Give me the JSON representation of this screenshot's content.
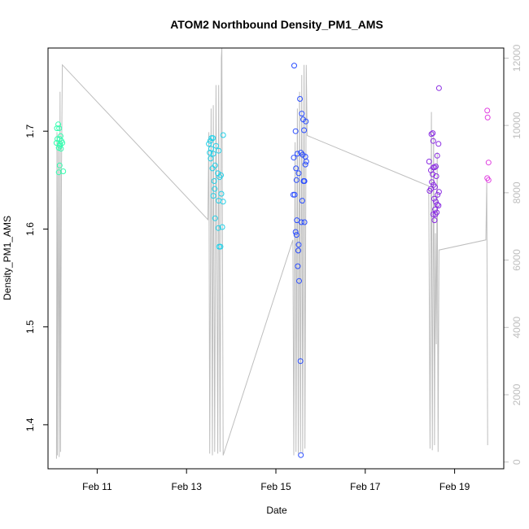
{
  "chart_data": {
    "type": "scatter",
    "title": "ATOM2 Northbound Density_PM1_AMS",
    "xlabel": "Date",
    "ylabel": "Density_PM1_AMS",
    "x_unit": "day of February",
    "xlim": [
      9.9,
      20.1
    ],
    "ylim": [
      1.355,
      1.785
    ],
    "x_ticks": [
      {
        "value": 11,
        "label": "Feb 11"
      },
      {
        "value": 13,
        "label": "Feb 13"
      },
      {
        "value": 15,
        "label": "Feb 15"
      },
      {
        "value": 17,
        "label": "Feb 17"
      },
      {
        "value": 19,
        "label": "Feb 19"
      }
    ],
    "y_ticks": [
      {
        "value": 1.4,
        "label": "1.4"
      },
      {
        "value": 1.5,
        "label": "1.5"
      },
      {
        "value": 1.6,
        "label": "1.6"
      },
      {
        "value": 1.7,
        "label": "1.7"
      }
    ],
    "y2_lim": [
      -200,
      12300
    ],
    "y2_ticks": [
      {
        "value": 0,
        "label": "0"
      },
      {
        "value": 2000,
        "label": "2000"
      },
      {
        "value": 4000,
        "label": "4000"
      },
      {
        "value": 6000,
        "label": "6000"
      },
      {
        "value": 8000,
        "label": "8000"
      },
      {
        "value": 10000,
        "label": "10000"
      },
      {
        "value": 12000,
        "label": "12000"
      }
    ],
    "grid": false,
    "legend": "none",
    "series": [
      {
        "marker": "open-circle",
        "color_note": "points colored by time, green to cyan to blue to purple to magenta",
        "points": [
          {
            "x": 10.1,
            "y": 1.703,
            "color": "#33ffb0"
          },
          {
            "x": 10.13,
            "y": 1.707,
            "color": "#33ffb0"
          },
          {
            "x": 10.15,
            "y": 1.703,
            "color": "#33ffb0"
          },
          {
            "x": 10.11,
            "y": 1.692,
            "color": "#33ffb0"
          },
          {
            "x": 10.16,
            "y": 1.692,
            "color": "#33ffb0"
          },
          {
            "x": 10.18,
            "y": 1.695,
            "color": "#33ffb0"
          },
          {
            "x": 10.09,
            "y": 1.688,
            "color": "#33ffb0"
          },
          {
            "x": 10.2,
            "y": 1.69,
            "color": "#33ffb0"
          },
          {
            "x": 10.17,
            "y": 1.687,
            "color": "#33ffb0"
          },
          {
            "x": 10.22,
            "y": 1.688,
            "color": "#33ffb0"
          },
          {
            "x": 10.14,
            "y": 1.683,
            "color": "#33ffb0"
          },
          {
            "x": 10.19,
            "y": 1.682,
            "color": "#33ffb0"
          },
          {
            "x": 10.16,
            "y": 1.665,
            "color": "#33ffb0"
          },
          {
            "x": 10.14,
            "y": 1.658,
            "color": "#33ffb0"
          },
          {
            "x": 10.24,
            "y": 1.659,
            "color": "#33ffb0"
          },
          {
            "x": 10.17,
            "y": 1.685,
            "color": "#33ffb0"
          },
          {
            "x": 13.5,
            "y": 1.687,
            "color": "#22d0e8"
          },
          {
            "x": 13.53,
            "y": 1.69,
            "color": "#22d0e8"
          },
          {
            "x": 13.56,
            "y": 1.693,
            "color": "#22d0e8"
          },
          {
            "x": 13.59,
            "y": 1.693,
            "color": "#22d0e8"
          },
          {
            "x": 13.55,
            "y": 1.682,
            "color": "#22d0e8"
          },
          {
            "x": 13.52,
            "y": 1.678,
            "color": "#22d0e8"
          },
          {
            "x": 13.6,
            "y": 1.677,
            "color": "#22d0e8"
          },
          {
            "x": 13.66,
            "y": 1.685,
            "color": "#22d0e8"
          },
          {
            "x": 13.72,
            "y": 1.68,
            "color": "#22d0e8"
          },
          {
            "x": 13.82,
            "y": 1.696,
            "color": "#22d0e8"
          },
          {
            "x": 13.54,
            "y": 1.672,
            "color": "#22d0e8"
          },
          {
            "x": 13.58,
            "y": 1.662,
            "color": "#22d0e8"
          },
          {
            "x": 13.64,
            "y": 1.665,
            "color": "#22d0e8"
          },
          {
            "x": 13.7,
            "y": 1.657,
            "color": "#22d0e8"
          },
          {
            "x": 13.74,
            "y": 1.653,
            "color": "#22d0e8"
          },
          {
            "x": 13.77,
            "y": 1.655,
            "color": "#22d0e8"
          },
          {
            "x": 13.62,
            "y": 1.649,
            "color": "#22d0e8"
          },
          {
            "x": 13.63,
            "y": 1.641,
            "color": "#22d0e8"
          },
          {
            "x": 13.6,
            "y": 1.634,
            "color": "#22d0e8"
          },
          {
            "x": 13.78,
            "y": 1.636,
            "color": "#22d0e8"
          },
          {
            "x": 13.72,
            "y": 1.629,
            "color": "#22d0e8"
          },
          {
            "x": 13.82,
            "y": 1.628,
            "color": "#22d0e8"
          },
          {
            "x": 13.64,
            "y": 1.611,
            "color": "#22d0e8"
          },
          {
            "x": 13.71,
            "y": 1.601,
            "color": "#22d0e8"
          },
          {
            "x": 13.8,
            "y": 1.602,
            "color": "#22d0e8"
          },
          {
            "x": 13.73,
            "y": 1.582,
            "color": "#22d0e8"
          },
          {
            "x": 13.76,
            "y": 1.582,
            "color": "#22d0e8"
          },
          {
            "x": 15.41,
            "y": 1.767,
            "color": "#2a4dff"
          },
          {
            "x": 15.54,
            "y": 1.733,
            "color": "#2a4dff"
          },
          {
            "x": 15.58,
            "y": 1.718,
            "color": "#2a4dff"
          },
          {
            "x": 15.61,
            "y": 1.712,
            "color": "#2a4dff"
          },
          {
            "x": 15.67,
            "y": 1.71,
            "color": "#2a4dff"
          },
          {
            "x": 15.44,
            "y": 1.7,
            "color": "#2a4dff"
          },
          {
            "x": 15.63,
            "y": 1.701,
            "color": "#2a4dff"
          },
          {
            "x": 15.48,
            "y": 1.677,
            "color": "#2a4dff"
          },
          {
            "x": 15.56,
            "y": 1.678,
            "color": "#2a4dff"
          },
          {
            "x": 15.6,
            "y": 1.676,
            "color": "#2a4dff"
          },
          {
            "x": 15.66,
            "y": 1.674,
            "color": "#2a4dff"
          },
          {
            "x": 15.4,
            "y": 1.673,
            "color": "#2a4dff"
          },
          {
            "x": 15.68,
            "y": 1.669,
            "color": "#2a4dff"
          },
          {
            "x": 15.66,
            "y": 1.666,
            "color": "#2a4dff"
          },
          {
            "x": 15.45,
            "y": 1.662,
            "color": "#2a4dff"
          },
          {
            "x": 15.51,
            "y": 1.657,
            "color": "#2a4dff"
          },
          {
            "x": 15.46,
            "y": 1.65,
            "color": "#2a4dff"
          },
          {
            "x": 15.62,
            "y": 1.649,
            "color": "#2a4dff"
          },
          {
            "x": 15.64,
            "y": 1.649,
            "color": "#2a4dff"
          },
          {
            "x": 15.63,
            "y": 1.649,
            "color": "#2a4dff"
          },
          {
            "x": 15.39,
            "y": 1.635,
            "color": "#2a4dff"
          },
          {
            "x": 15.42,
            "y": 1.635,
            "color": "#2a4dff"
          },
          {
            "x": 15.59,
            "y": 1.629,
            "color": "#2a4dff"
          },
          {
            "x": 15.47,
            "y": 1.609,
            "color": "#2a4dff"
          },
          {
            "x": 15.57,
            "y": 1.607,
            "color": "#2a4dff"
          },
          {
            "x": 15.64,
            "y": 1.607,
            "color": "#2a4dff"
          },
          {
            "x": 15.44,
            "y": 1.597,
            "color": "#2a4dff"
          },
          {
            "x": 15.46,
            "y": 1.594,
            "color": "#2a4dff"
          },
          {
            "x": 15.51,
            "y": 1.584,
            "color": "#2a4dff"
          },
          {
            "x": 15.5,
            "y": 1.578,
            "color": "#2a4dff"
          },
          {
            "x": 15.49,
            "y": 1.562,
            "color": "#2a4dff"
          },
          {
            "x": 15.52,
            "y": 1.547,
            "color": "#2a4dff"
          },
          {
            "x": 15.55,
            "y": 1.465,
            "color": "#2a4dff"
          },
          {
            "x": 15.56,
            "y": 1.369,
            "color": "#2a4dff"
          },
          {
            "x": 18.48,
            "y": 1.697,
            "color": "#8a2be2"
          },
          {
            "x": 18.51,
            "y": 1.698,
            "color": "#8a2be2"
          },
          {
            "x": 18.52,
            "y": 1.69,
            "color": "#8a2be2"
          },
          {
            "x": 18.65,
            "y": 1.744,
            "color": "#8a2be2"
          },
          {
            "x": 18.64,
            "y": 1.687,
            "color": "#8a2be2"
          },
          {
            "x": 18.61,
            "y": 1.675,
            "color": "#8a2be2"
          },
          {
            "x": 18.43,
            "y": 1.669,
            "color": "#8a2be2"
          },
          {
            "x": 18.58,
            "y": 1.664,
            "color": "#8a2be2"
          },
          {
            "x": 18.52,
            "y": 1.663,
            "color": "#8a2be2"
          },
          {
            "x": 18.55,
            "y": 1.663,
            "color": "#8a2be2"
          },
          {
            "x": 18.47,
            "y": 1.66,
            "color": "#8a2be2"
          },
          {
            "x": 18.51,
            "y": 1.656,
            "color": "#8a2be2"
          },
          {
            "x": 18.59,
            "y": 1.654,
            "color": "#8a2be2"
          },
          {
            "x": 18.49,
            "y": 1.648,
            "color": "#8a2be2"
          },
          {
            "x": 18.53,
            "y": 1.645,
            "color": "#8a2be2"
          },
          {
            "x": 18.56,
            "y": 1.643,
            "color": "#8a2be2"
          },
          {
            "x": 18.47,
            "y": 1.641,
            "color": "#8a2be2"
          },
          {
            "x": 18.44,
            "y": 1.639,
            "color": "#8a2be2"
          },
          {
            "x": 18.65,
            "y": 1.638,
            "color": "#8a2be2"
          },
          {
            "x": 18.62,
            "y": 1.635,
            "color": "#8a2be2"
          },
          {
            "x": 18.54,
            "y": 1.631,
            "color": "#8a2be2"
          },
          {
            "x": 18.58,
            "y": 1.628,
            "color": "#8a2be2"
          },
          {
            "x": 18.61,
            "y": 1.625,
            "color": "#8a2be2"
          },
          {
            "x": 18.64,
            "y": 1.624,
            "color": "#8a2be2"
          },
          {
            "x": 18.56,
            "y": 1.62,
            "color": "#8a2be2"
          },
          {
            "x": 18.6,
            "y": 1.617,
            "color": "#8a2be2"
          },
          {
            "x": 18.52,
            "y": 1.615,
            "color": "#8a2be2"
          },
          {
            "x": 18.57,
            "y": 1.615,
            "color": "#8a2be2"
          },
          {
            "x": 18.55,
            "y": 1.609,
            "color": "#8a2be2"
          },
          {
            "x": 19.73,
            "y": 1.721,
            "color": "#e040e0"
          },
          {
            "x": 19.74,
            "y": 1.714,
            "color": "#e040e0"
          },
          {
            "x": 19.76,
            "y": 1.668,
            "color": "#e040e0"
          },
          {
            "x": 19.73,
            "y": 1.652,
            "color": "#e040e0"
          },
          {
            "x": 19.76,
            "y": 1.65,
            "color": "#e040e0"
          }
        ]
      },
      {
        "type": "line",
        "axis": "right",
        "color": "#bebebe",
        "points": [
          {
            "x": 10.09,
            "y": 100
          },
          {
            "x": 10.1,
            "y": 9800
          },
          {
            "x": 10.11,
            "y": 200
          },
          {
            "x": 10.13,
            "y": 9500
          },
          {
            "x": 10.15,
            "y": 150
          },
          {
            "x": 10.17,
            "y": 11000
          },
          {
            "x": 10.18,
            "y": 300
          },
          {
            "x": 10.2,
            "y": 8500
          },
          {
            "x": 10.22,
            "y": 11800
          },
          {
            "x": 13.48,
            "y": 7200
          },
          {
            "x": 13.5,
            "y": 9800
          },
          {
            "x": 13.52,
            "y": 250
          },
          {
            "x": 13.55,
            "y": 10500
          },
          {
            "x": 13.58,
            "y": 200
          },
          {
            "x": 13.6,
            "y": 10600
          },
          {
            "x": 13.63,
            "y": 300
          },
          {
            "x": 13.66,
            "y": 11200
          },
          {
            "x": 13.7,
            "y": 250
          },
          {
            "x": 13.72,
            "y": 11200
          },
          {
            "x": 13.75,
            "y": 300
          },
          {
            "x": 13.78,
            "y": 12000
          },
          {
            "x": 13.79,
            "y": 12300
          },
          {
            "x": 13.82,
            "y": 200
          },
          {
            "x": 15.38,
            "y": 6600
          },
          {
            "x": 15.4,
            "y": 200
          },
          {
            "x": 15.43,
            "y": 9500
          },
          {
            "x": 15.45,
            "y": 300
          },
          {
            "x": 15.48,
            "y": 10500
          },
          {
            "x": 15.5,
            "y": 250
          },
          {
            "x": 15.53,
            "y": 11000
          },
          {
            "x": 15.55,
            "y": 300
          },
          {
            "x": 15.58,
            "y": 11500
          },
          {
            "x": 15.6,
            "y": 250
          },
          {
            "x": 15.63,
            "y": 11800
          },
          {
            "x": 15.65,
            "y": 400
          },
          {
            "x": 15.68,
            "y": 11800
          },
          {
            "x": 15.7,
            "y": 9700
          },
          {
            "x": 18.42,
            "y": 8200
          },
          {
            "x": 18.45,
            "y": 400
          },
          {
            "x": 18.48,
            "y": 10400
          },
          {
            "x": 18.5,
            "y": 350
          },
          {
            "x": 18.53,
            "y": 9800
          },
          {
            "x": 18.55,
            "y": 500
          },
          {
            "x": 18.57,
            "y": 6800
          },
          {
            "x": 18.59,
            "y": 3500
          },
          {
            "x": 18.61,
            "y": 9200
          },
          {
            "x": 18.63,
            "y": 300
          },
          {
            "x": 18.65,
            "y": 6300
          },
          {
            "x": 19.7,
            "y": 6600
          },
          {
            "x": 19.72,
            "y": 8300
          },
          {
            "x": 19.74,
            "y": 500
          }
        ]
      }
    ]
  }
}
